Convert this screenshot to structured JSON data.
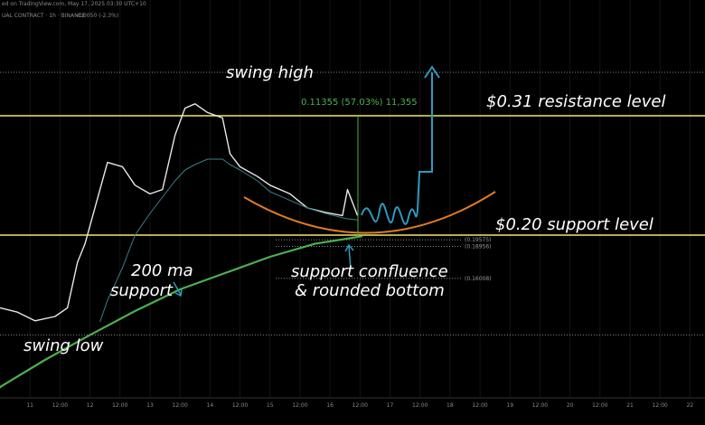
{
  "chart_data": {
    "type": "line",
    "header": [
      "ed on TradingView.com, May 17, 2025 03:30 UTC+10",
      "UAL CONTRACT · 1h · BINANCE",
      "-0.0050 (-2.3%)"
    ],
    "x": [
      0,
      7,
      14,
      22,
      27,
      31,
      34,
      40,
      43,
      49,
      54,
      60,
      65,
      70,
      74,
      78,
      83,
      89,
      92,
      96,
      103,
      108,
      116,
      123,
      130,
      137,
      139,
      143
    ],
    "series": [
      {
        "color": "#e8e8e8",
        "values": [
          0.133,
          0.129,
          0.121,
          0.125,
          0.133,
          0.175,
          0.192,
          0.242,
          0.267,
          0.263,
          0.246,
          0.238,
          0.242,
          0.292,
          0.317,
          0.321,
          0.313,
          0.308,
          0.275,
          0.263,
          0.254,
          0.246,
          0.238,
          0.225,
          0.221,
          0.218,
          0.242,
          0.218
        ]
      },
      {
        "color": "#4caf50",
        "values": [
          0.06,
          null,
          null,
          null,
          null,
          null,
          null,
          null,
          null,
          null,
          null,
          null,
          null,
          null,
          null,
          null,
          null,
          null,
          null,
          null,
          null,
          null,
          null,
          null,
          null,
          null,
          null,
          0.199
        ]
      },
      {
        "color": "#3a7f86",
        "values": [
          null,
          null,
          null,
          null,
          null,
          null,
          null,
          0.12,
          0.14,
          0.17,
          0.2,
          0.22,
          0.235,
          0.25,
          0.26,
          0.265,
          0.27,
          0.27,
          0.265,
          0.26,
          0.25,
          0.24,
          0.232,
          0.225,
          0.22,
          0.216,
          0.215,
          0.214
        ]
      }
    ],
    "ma_x": [
      0,
      18,
      36,
      54,
      72,
      90,
      108,
      126,
      145
    ],
    "ma_values": [
      0.06,
      0.085,
      0.108,
      0.13,
      0.15,
      0.165,
      0.18,
      0.192,
      0.199
    ],
    "ma_color": "#4caf50",
    "xlim": [
      0,
      282
    ],
    "ylim": [
      0.05,
      0.4
    ],
    "xticks": [
      {
        "value": 12,
        "label": "11"
      },
      {
        "value": 24,
        "label": "12:00"
      },
      {
        "value": 36,
        "label": "12"
      },
      {
        "value": 48,
        "label": "12:00"
      },
      {
        "value": 60,
        "label": "13"
      },
      {
        "value": 72,
        "label": "12:00"
      },
      {
        "value": 84,
        "label": "14"
      },
      {
        "value": 96,
        "label": "12:00"
      },
      {
        "value": 108,
        "label": "15"
      },
      {
        "value": 120,
        "label": "12:00"
      },
      {
        "value": 132,
        "label": "16"
      },
      {
        "value": 144,
        "label": "12:00"
      },
      {
        "value": 156,
        "label": "17"
      },
      {
        "value": 168,
        "label": "12:00"
      },
      {
        "value": 180,
        "label": "18"
      },
      {
        "value": 192,
        "label": "12:00"
      },
      {
        "value": 204,
        "label": "19"
      },
      {
        "value": 216,
        "label": "12:00"
      },
      {
        "value": 228,
        "label": "20"
      },
      {
        "value": 240,
        "label": "12:00"
      },
      {
        "value": 252,
        "label": "21"
      },
      {
        "value": 264,
        "label": "12:00"
      },
      {
        "value": 276,
        "label": "22"
      }
    ],
    "levels": [
      {
        "value": 0.35,
        "style": "dotted",
        "color": "#888888"
      },
      {
        "value": 0.31,
        "style": "solid",
        "color": "#f5e663"
      },
      {
        "value": 0.2,
        "style": "solid",
        "color": "#f5e663"
      },
      {
        "value": 0.108,
        "style": "dotted",
        "color": "#888888"
      },
      {
        "value": 0.19575,
        "label": "(0.19575)",
        "style": "short",
        "color": "#b8b8b8"
      },
      {
        "value": 0.18956,
        "label": "(0.18956)",
        "style": "short",
        "color": "#b8b8b8"
      },
      {
        "value": 0.16008,
        "label": "(0.16008)",
        "style": "short",
        "color": "#b8b8b8"
      }
    ],
    "annotations": [
      "swing high",
      "0.11355 (57.03%) 11,355",
      "$0.31 resistance level",
      "$0.20 support level",
      "200 ma",
      "support",
      "support confluence",
      "& rounded bottom",
      "swing low"
    ]
  }
}
